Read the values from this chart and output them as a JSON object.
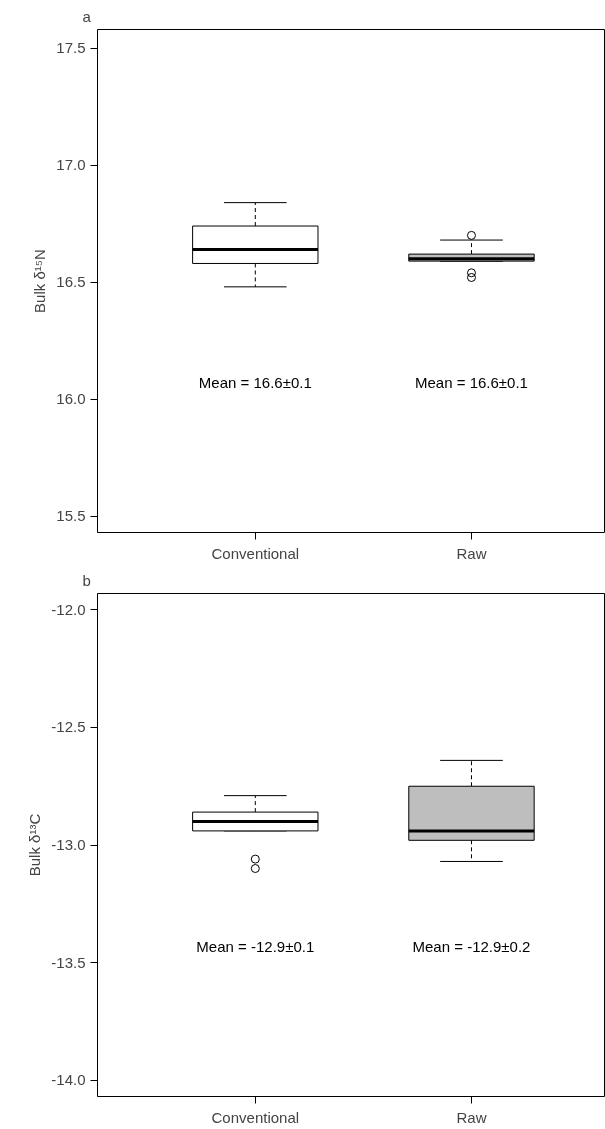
{
  "chart_data": [
    {
      "type": "box",
      "title": "a",
      "ylabel": "Bulk δ¹⁵N",
      "categories": [
        "Conventional",
        "Raw"
      ],
      "colors": [
        "#ffffff",
        "#bebebe"
      ],
      "boxes": [
        {
          "low": 16.48,
          "q1": 16.58,
          "median": 16.64,
          "q3": 16.74,
          "high": 16.84
        },
        {
          "low": 16.59,
          "q1": 16.59,
          "median": 16.6,
          "q3": 16.62,
          "high": 16.68,
          "outliers": [
            16.7,
            16.54,
            16.52
          ]
        }
      ],
      "ylim": [
        15.43,
        17.58
      ],
      "yticks": [
        {
          "value": 15.5,
          "label": "15.5"
        },
        {
          "value": 16,
          "label": "16.0"
        },
        {
          "value": 16.5,
          "label": "16.5"
        },
        {
          "value": 17,
          "label": "17.0"
        },
        {
          "value": 17.5,
          "label": "17.5"
        }
      ],
      "annotations": [
        "Mean = 16.6±0.1",
        "Mean = 16.6±0.1"
      ],
      "grid": false
    },
    {
      "type": "box",
      "title": "b",
      "ylabel": "Bulk δ¹³C",
      "categories": [
        "Conventional",
        "Raw"
      ],
      "colors": [
        "#ffffff",
        "#bebebe"
      ],
      "boxes": [
        {
          "low": -12.94,
          "q1": -12.94,
          "median": -12.9,
          "q3": -12.86,
          "high": -12.79,
          "outliers": [
            -13.06,
            -13.1
          ]
        },
        {
          "low": -13.07,
          "q1": -12.98,
          "median": -12.94,
          "q3": -12.75,
          "high": -12.64
        }
      ],
      "ylim": [
        -14.07,
        -11.93
      ],
      "yticks": [
        {
          "value": -14,
          "label": "-14.0"
        },
        {
          "value": -13.5,
          "label": "-13.5"
        },
        {
          "value": -13,
          "label": "-13.0"
        },
        {
          "value": -12.5,
          "label": "-12.5"
        },
        {
          "value": -12,
          "label": "-12.0"
        }
      ],
      "annotations": [
        "Mean = -12.9±0.1",
        "Mean = -12.9±0.2"
      ],
      "grid": false
    }
  ]
}
